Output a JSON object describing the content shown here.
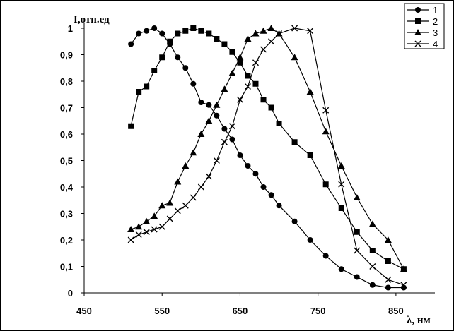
{
  "chart_data": {
    "type": "line",
    "title": "",
    "xlabel": "λ, нм",
    "ylabel": "I,отн.ед",
    "xlim": [
      450,
      900
    ],
    "ylim": [
      0,
      1
    ],
    "x_ticks": [
      450,
      550,
      650,
      750,
      850
    ],
    "y_ticks": [
      0,
      0.1,
      0.2,
      0.3,
      0.4,
      0.5,
      0.6,
      0.7,
      0.8,
      0.9,
      1
    ],
    "x_tick_labels": [
      "450",
      "550",
      "650",
      "750",
      "850"
    ],
    "y_tick_labels": [
      "0",
      "0,1",
      "0,2",
      "0,3",
      "0,4",
      "0,5",
      "0,6",
      "0,7",
      "0,8",
      "0,9",
      "1"
    ],
    "grid": false,
    "legend_position": "top-right",
    "series": [
      {
        "name": "1",
        "marker": "circle",
        "x": [
          510,
          520,
          530,
          540,
          550,
          560,
          570,
          580,
          590,
          600,
          610,
          620,
          630,
          640,
          650,
          660,
          670,
          680,
          690,
          700,
          720,
          740,
          760,
          780,
          800,
          820,
          840,
          860
        ],
        "y": [
          0.94,
          0.98,
          0.99,
          1.0,
          0.98,
          0.94,
          0.89,
          0.85,
          0.79,
          0.72,
          0.71,
          0.67,
          0.62,
          0.58,
          0.52,
          0.48,
          0.45,
          0.4,
          0.37,
          0.33,
          0.27,
          0.2,
          0.14,
          0.09,
          0.06,
          0.03,
          0.02,
          0.02
        ]
      },
      {
        "name": "2",
        "marker": "square",
        "x": [
          510,
          520,
          530,
          540,
          550,
          560,
          570,
          580,
          590,
          600,
          610,
          620,
          630,
          640,
          650,
          660,
          670,
          680,
          690,
          700,
          720,
          740,
          760,
          780,
          800,
          820,
          840,
          860
        ],
        "y": [
          0.63,
          0.76,
          0.78,
          0.84,
          0.89,
          0.95,
          0.98,
          0.99,
          1.0,
          0.99,
          0.98,
          0.96,
          0.94,
          0.91,
          0.87,
          0.82,
          0.79,
          0.73,
          0.7,
          0.64,
          0.57,
          0.52,
          0.41,
          0.32,
          0.23,
          0.16,
          0.12,
          0.09
        ]
      },
      {
        "name": "3",
        "marker": "triangle",
        "x": [
          510,
          520,
          530,
          540,
          550,
          560,
          570,
          580,
          590,
          600,
          610,
          620,
          630,
          640,
          650,
          660,
          670,
          680,
          690,
          700,
          720,
          740,
          760,
          780,
          800,
          820,
          840,
          860
        ],
        "y": [
          0.24,
          0.25,
          0.27,
          0.29,
          0.33,
          0.34,
          0.42,
          0.48,
          0.53,
          0.6,
          0.65,
          0.71,
          0.77,
          0.83,
          0.89,
          0.96,
          0.98,
          0.99,
          1.0,
          0.98,
          0.89,
          0.76,
          0.61,
          0.48,
          0.36,
          0.26,
          0.2,
          0.09
        ]
      },
      {
        "name": "4",
        "marker": "x",
        "x": [
          510,
          520,
          530,
          540,
          550,
          560,
          570,
          580,
          590,
          600,
          610,
          620,
          630,
          640,
          650,
          660,
          670,
          680,
          690,
          700,
          720,
          740,
          760,
          780,
          800,
          820,
          840,
          860
        ],
        "y": [
          0.2,
          0.22,
          0.23,
          0.24,
          0.25,
          0.28,
          0.31,
          0.33,
          0.36,
          0.4,
          0.44,
          0.5,
          0.57,
          0.63,
          0.73,
          0.78,
          0.87,
          0.92,
          0.95,
          0.98,
          1.0,
          0.99,
          0.69,
          0.41,
          0.16,
          0.1,
          0.05,
          0.03
        ]
      }
    ]
  }
}
